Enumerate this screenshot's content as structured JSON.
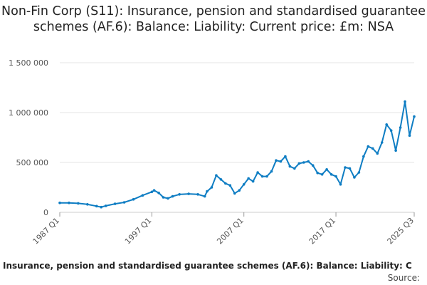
{
  "chart_data": {
    "type": "line",
    "title": "Non-Fin Corp (S11): Insurance, pension and standardised guarantee schemes (AF.6): Balance: Liability: Current price: £m: NSA",
    "xlabel": "",
    "ylabel": "",
    "x_tick_labels": [
      "1987 Q1",
      "1997 Q1",
      "2007 Q1",
      "2017 Q1",
      "2025 Q3"
    ],
    "y_tick_labels": [
      "0",
      "500 000",
      "1 000 000",
      "1 500 000"
    ],
    "ylim": [
      0,
      1500000
    ],
    "grid": "horizontal",
    "line_color": "#0e7dc3",
    "caption": "Insurance, pension and standardised guarantee schemes (AF.6): Balance: Liability: C",
    "source": "Source:",
    "series": [
      {
        "points": [
          [
            "1987 Q1",
            95000
          ],
          [
            "1988 Q1",
            95000
          ],
          [
            "1989 Q1",
            90000
          ],
          [
            "1990 Q1",
            80000
          ],
          [
            "1991 Q1",
            62000
          ],
          [
            "1991 Q3",
            52000
          ],
          [
            "1992 Q1",
            65000
          ],
          [
            "1993 Q1",
            85000
          ],
          [
            "1994 Q1",
            100000
          ],
          [
            "1995 Q1",
            130000
          ],
          [
            "1996 Q1",
            170000
          ],
          [
            "1997 Q1",
            205000
          ],
          [
            "1997 Q2",
            220000
          ],
          [
            "1997 Q4",
            195000
          ],
          [
            "1998 Q2",
            150000
          ],
          [
            "1998 Q4",
            140000
          ],
          [
            "1999 Q2",
            160000
          ],
          [
            "2000 Q1",
            180000
          ],
          [
            "2001 Q1",
            185000
          ],
          [
            "2002 Q1",
            180000
          ],
          [
            "2002 Q4",
            160000
          ],
          [
            "2003 Q1",
            210000
          ],
          [
            "2003 Q3",
            250000
          ],
          [
            "2004 Q1",
            370000
          ],
          [
            "2004 Q3",
            330000
          ],
          [
            "2005 Q1",
            290000
          ],
          [
            "2005 Q3",
            270000
          ],
          [
            "2006 Q1",
            190000
          ],
          [
            "2006 Q3",
            220000
          ],
          [
            "2007 Q1",
            280000
          ],
          [
            "2007 Q3",
            340000
          ],
          [
            "2008 Q1",
            310000
          ],
          [
            "2008 Q3",
            400000
          ],
          [
            "2009 Q1",
            360000
          ],
          [
            "2009 Q3",
            360000
          ],
          [
            "2010 Q1",
            410000
          ],
          [
            "2010 Q3",
            520000
          ],
          [
            "2011 Q1",
            510000
          ],
          [
            "2011 Q3",
            560000
          ],
          [
            "2012 Q1",
            460000
          ],
          [
            "2012 Q3",
            440000
          ],
          [
            "2013 Q1",
            490000
          ],
          [
            "2013 Q3",
            500000
          ],
          [
            "2014 Q1",
            510000
          ],
          [
            "2014 Q3",
            470000
          ],
          [
            "2015 Q1",
            395000
          ],
          [
            "2015 Q3",
            380000
          ],
          [
            "2016 Q1",
            430000
          ],
          [
            "2016 Q3",
            380000
          ],
          [
            "2017 Q1",
            360000
          ],
          [
            "2017 Q3",
            280000
          ],
          [
            "2018 Q1",
            450000
          ],
          [
            "2018 Q3",
            440000
          ],
          [
            "2019 Q1",
            350000
          ],
          [
            "2019 Q3",
            400000
          ],
          [
            "2020 Q1",
            560000
          ],
          [
            "2020 Q3",
            660000
          ],
          [
            "2021 Q1",
            640000
          ],
          [
            "2021 Q3",
            590000
          ],
          [
            "2022 Q1",
            700000
          ],
          [
            "2022 Q3",
            880000
          ],
          [
            "2023 Q1",
            820000
          ],
          [
            "2023 Q3",
            620000
          ],
          [
            "2024 Q1",
            850000
          ],
          [
            "2024 Q3",
            1110000
          ],
          [
            "2025 Q1",
            770000
          ],
          [
            "2025 Q3",
            960000
          ]
        ]
      }
    ]
  }
}
